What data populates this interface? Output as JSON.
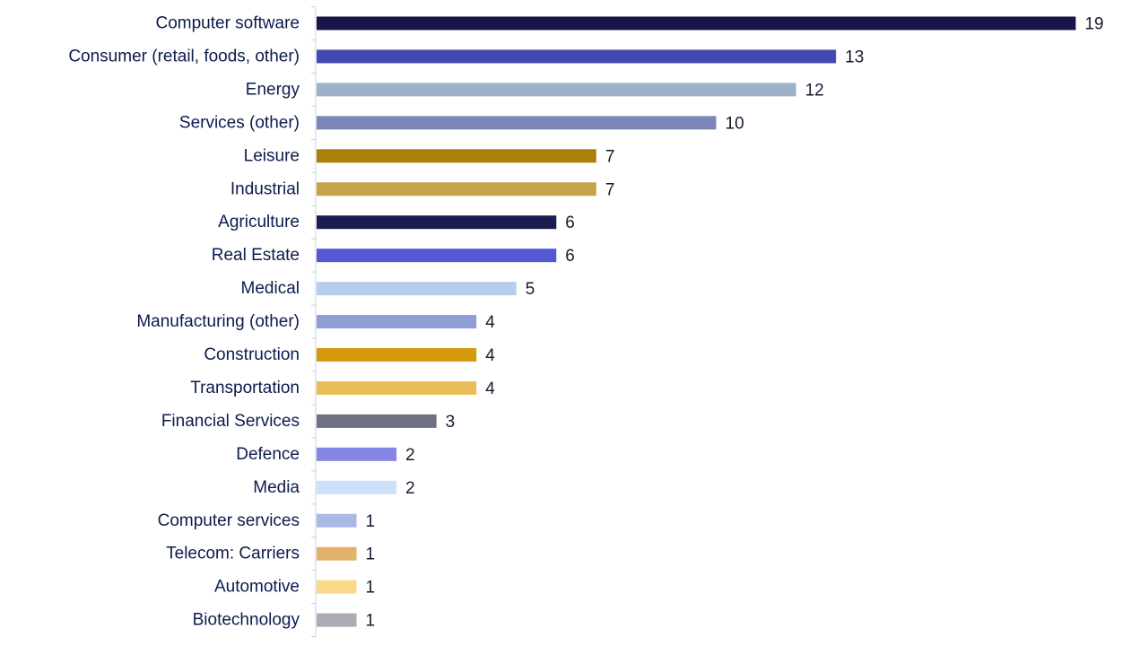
{
  "chart_data": {
    "type": "bar",
    "orientation": "horizontal",
    "title": "",
    "xlabel": "",
    "ylabel": "",
    "xlim": [
      0,
      19
    ],
    "grid": false,
    "legend": "none",
    "categories": [
      "Computer software",
      "Consumer (retail, foods, other)",
      "Energy",
      "Services (other)",
      "Leisure",
      "Industrial",
      "Agriculture",
      "Real Estate",
      "Medical",
      "Manufacturing (other)",
      "Construction",
      "Transportation",
      "Financial Services",
      "Defence",
      "Media",
      "Computer services",
      "Telecom: Carriers",
      "Automotive",
      "Biotechnology"
    ],
    "values": [
      19,
      13,
      12,
      10,
      7,
      7,
      6,
      6,
      5,
      4,
      4,
      4,
      3,
      2,
      2,
      1,
      1,
      1,
      1
    ],
    "colors": [
      "#16164a",
      "#4548b0",
      "#9fb0cb",
      "#7a86b8",
      "#ac7f07",
      "#c8a24a",
      "#1b1b52",
      "#5458d2",
      "#b6cdee",
      "#8e9fd6",
      "#d39b0c",
      "#ebbd58",
      "#6f6f85",
      "#8585e6",
      "#cfe0fa",
      "#aab8e6",
      "#e2b26a",
      "#fcd98a",
      "#ababb6"
    ]
  }
}
